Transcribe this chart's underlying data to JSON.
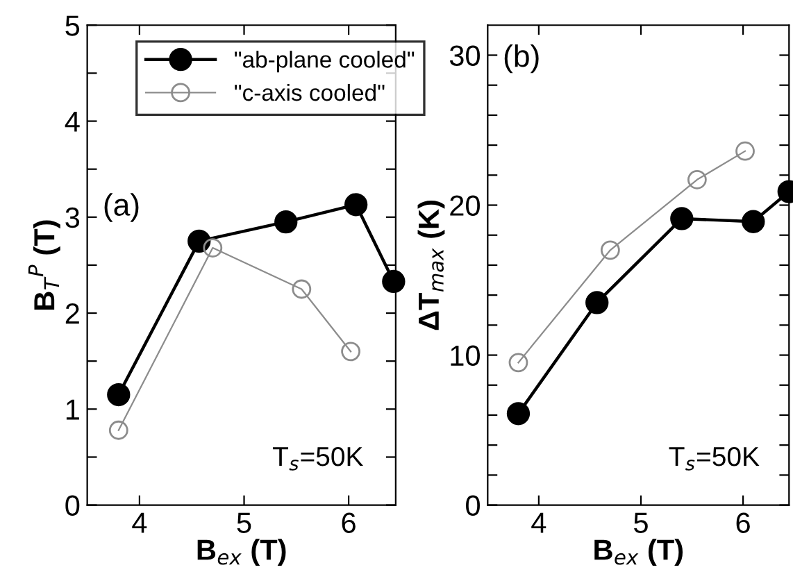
{
  "chart_data": [
    {
      "type": "line",
      "xlabel": "B$_{ex}$ (T)",
      "ylabel": "B$_{T}$$^{P}$ (T)",
      "annotations": [
        "(a)",
        "T$_{s}$=50K"
      ],
      "x": [
        3.8,
        4.57,
        5.4,
        6.07,
        6.43
      ],
      "series": [
        {
          "name": "\"ab-plane cooled\"",
          "color": "#000000",
          "marker": "circle",
          "values": [
            1.15,
            2.75,
            2.95,
            3.13,
            2.33
          ]
        },
        {
          "name": "\"c-axis cooled\"",
          "color": "#8c8c8c",
          "marker": "circle",
          "x": [
            3.8,
            4.7,
            5.55,
            6.02
          ],
          "values": [
            0.78,
            2.68,
            2.25,
            1.6
          ]
        }
      ],
      "xlim": [
        3.5,
        6.45
      ],
      "ylim": [
        0,
        5
      ],
      "xticks": [
        4,
        5,
        6
      ],
      "yticks": [
        0,
        {
          "value": 0.5,
          "label": null
        },
        1,
        {
          "value": 1.5,
          "label": null
        },
        2,
        {
          "value": 2.5,
          "label": null
        },
        3,
        {
          "value": 3.5,
          "label": null
        },
        4,
        {
          "value": 4.5,
          "label": null
        },
        5
      ],
      "legend": "top right",
      "grid": false
    },
    {
      "type": "line",
      "xlabel": "B$_{ex}$ (T)",
      "ylabel": "ΔT$_{max}$ (K)",
      "annotations": [
        "(b)",
        "T$_{s}$=50K"
      ],
      "x": [
        3.8,
        4.57,
        5.4,
        6.1,
        6.45
      ],
      "series": [
        {
          "color": "#000000",
          "marker": "circle",
          "values": [
            6.1,
            13.5,
            19.1,
            18.9,
            20.9
          ]
        },
        {
          "color": "#8c8c8c",
          "marker": "circle",
          "x": [
            3.8,
            4.7,
            5.55,
            6.02
          ],
          "values": [
            9.5,
            17.0,
            21.7,
            23.6
          ]
        }
      ],
      "xlim": [
        3.5,
        6.45
      ],
      "ylim": [
        0,
        32
      ],
      "xticks": [
        4,
        5,
        6
      ],
      "yticks": [
        0,
        {
          "value": 2,
          "label": null
        },
        {
          "value": 4,
          "label": null
        },
        {
          "value": 6,
          "label": null
        },
        {
          "value": 8,
          "label": null
        },
        10,
        {
          "value": 12,
          "label": null
        },
        {
          "value": 14,
          "label": null
        },
        {
          "value": 16,
          "label": null
        },
        {
          "value": 18,
          "label": null
        },
        20,
        {
          "value": 22,
          "label": null
        },
        {
          "value": 24,
          "label": null
        },
        {
          "value": 26,
          "label": null
        },
        {
          "value": 28,
          "label": null
        },
        30
      ],
      "grid": false
    }
  ]
}
